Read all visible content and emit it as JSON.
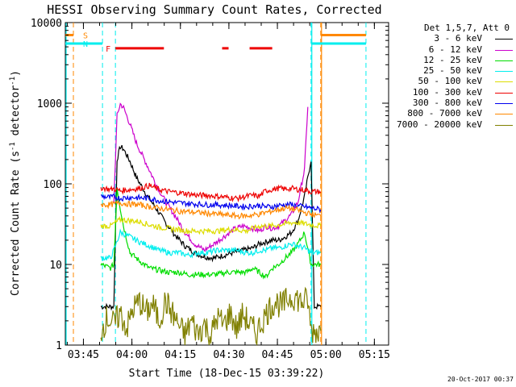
{
  "chart_data": {
    "type": "line",
    "title": "HESSI Observing Summary Count Rates, Corrected",
    "xlabel": "Start Time (18-Dec-15 03:39:22)",
    "ylabel": "Corrected Count Rate (s",
    "ylabel_sup": "-1",
    "ylabel_tail": " detector",
    "ylabel_end": ")",
    "x_ticks": [
      "03:45",
      "04:00",
      "04:15",
      "04:30",
      "04:45",
      "05:00",
      "05:15"
    ],
    "x_tick_minutes": [
      5.6,
      20.6,
      35.6,
      50.6,
      65.6,
      80.6,
      95.6
    ],
    "y_ticks": [
      "1",
      "10",
      "100",
      "1000",
      "10000"
    ],
    "y_tick_values": [
      1,
      10,
      100,
      1000,
      10000
    ],
    "xlim": [
      0,
      100
    ],
    "ylim": [
      1,
      10000
    ],
    "yscale": "log",
    "legend_title": "Det 1,5,7, Att 0",
    "legend_position": "right",
    "series": [
      {
        "name": "3 - 6 keV",
        "color": "#000000",
        "points": [
          [
            11,
            3
          ],
          [
            14,
            3
          ],
          [
            15,
            3
          ],
          [
            16,
            200
          ],
          [
            17,
            290
          ],
          [
            18,
            270
          ],
          [
            20,
            190
          ],
          [
            22,
            120
          ],
          [
            25,
            75
          ],
          [
            28,
            50
          ],
          [
            31,
            33
          ],
          [
            34,
            23
          ],
          [
            37,
            17
          ],
          [
            40,
            14
          ],
          [
            43,
            12.5
          ],
          [
            46,
            12
          ],
          [
            49,
            13
          ],
          [
            52,
            14
          ],
          [
            55,
            15
          ],
          [
            58,
            16
          ],
          [
            60,
            18
          ],
          [
            62,
            19
          ],
          [
            64,
            20
          ],
          [
            66,
            20
          ],
          [
            68,
            22
          ],
          [
            70,
            25
          ],
          [
            72,
            35
          ],
          [
            74,
            70
          ],
          [
            76,
            200
          ],
          [
            77,
            3
          ],
          [
            79,
            3
          ]
        ]
      },
      {
        "name": "6 - 12 keV",
        "color": "#cc00cc",
        "points": [
          [
            15,
            60
          ],
          [
            16,
            700
          ],
          [
            17,
            980
          ],
          [
            18,
            880
          ],
          [
            20,
            550
          ],
          [
            22,
            320
          ],
          [
            25,
            180
          ],
          [
            28,
            100
          ],
          [
            31,
            60
          ],
          [
            34,
            40
          ],
          [
            37,
            25
          ],
          [
            40,
            18
          ],
          [
            43,
            15
          ],
          [
            46,
            18
          ],
          [
            49,
            22
          ],
          [
            52,
            27
          ],
          [
            55,
            30
          ],
          [
            58,
            28
          ],
          [
            60,
            26
          ],
          [
            62,
            30
          ],
          [
            64,
            28
          ],
          [
            66,
            30
          ],
          [
            68,
            35
          ],
          [
            70,
            42
          ],
          [
            72,
            60
          ],
          [
            74,
            150
          ],
          [
            75,
            900
          ]
        ]
      },
      {
        "name": "12 - 25 keV",
        "color": "#00dd00",
        "points": [
          [
            11,
            10
          ],
          [
            14,
            9
          ],
          [
            15,
            10
          ],
          [
            16,
            90
          ],
          [
            17,
            50
          ],
          [
            18,
            30
          ],
          [
            20,
            14
          ],
          [
            23,
            11
          ],
          [
            26,
            9
          ],
          [
            29,
            8.5
          ],
          [
            32,
            8
          ],
          [
            35,
            8
          ],
          [
            38,
            7.5
          ],
          [
            41,
            7.5
          ],
          [
            44,
            7.5
          ],
          [
            47,
            7.5
          ],
          [
            50,
            8
          ],
          [
            53,
            8
          ],
          [
            56,
            8
          ],
          [
            58,
            9
          ],
          [
            60,
            8
          ],
          [
            62,
            7
          ],
          [
            64,
            9
          ],
          [
            66,
            10
          ],
          [
            68,
            12
          ],
          [
            70,
            14
          ],
          [
            72,
            18
          ],
          [
            74,
            25
          ],
          [
            76,
            10
          ],
          [
            79,
            10
          ]
        ]
      },
      {
        "name": "25 - 50 keV",
        "color": "#00eeee",
        "points": [
          [
            11,
            12
          ],
          [
            14,
            12
          ],
          [
            15,
            15
          ],
          [
            17,
            25
          ],
          [
            20,
            22
          ],
          [
            23,
            19
          ],
          [
            26,
            17
          ],
          [
            29,
            15
          ],
          [
            32,
            14
          ],
          [
            35,
            14
          ],
          [
            38,
            13
          ],
          [
            41,
            14
          ],
          [
            44,
            14
          ],
          [
            47,
            15
          ],
          [
            50,
            15
          ],
          [
            53,
            15
          ],
          [
            56,
            14
          ],
          [
            58,
            14
          ],
          [
            60,
            15
          ],
          [
            62,
            15
          ],
          [
            64,
            16
          ],
          [
            66,
            16
          ],
          [
            68,
            17
          ],
          [
            70,
            18
          ],
          [
            72,
            17
          ],
          [
            74,
            16
          ],
          [
            76,
            14
          ],
          [
            79,
            14
          ]
        ]
      },
      {
        "name": "50 - 100 keV",
        "color": "#dddd00",
        "points": [
          [
            11,
            30
          ],
          [
            14,
            30
          ],
          [
            15,
            32
          ],
          [
            17,
            36
          ],
          [
            20,
            35
          ],
          [
            23,
            34
          ],
          [
            26,
            31
          ],
          [
            29,
            29
          ],
          [
            32,
            28
          ],
          [
            35,
            27
          ],
          [
            38,
            26
          ],
          [
            41,
            26
          ],
          [
            44,
            26
          ],
          [
            47,
            26
          ],
          [
            50,
            27
          ],
          [
            53,
            27
          ],
          [
            56,
            26
          ],
          [
            58,
            28
          ],
          [
            60,
            30
          ],
          [
            62,
            30
          ],
          [
            64,
            30
          ],
          [
            66,
            31
          ],
          [
            68,
            32
          ],
          [
            70,
            33
          ],
          [
            72,
            33
          ],
          [
            74,
            32
          ],
          [
            76,
            31
          ],
          [
            79,
            30
          ]
        ]
      },
      {
        "name": "100 - 300 keV",
        "color": "#ee0000",
        "points": [
          [
            11,
            90
          ],
          [
            14,
            85
          ],
          [
            15,
            87
          ],
          [
            17,
            82
          ],
          [
            20,
            85
          ],
          [
            23,
            88
          ],
          [
            26,
            95
          ],
          [
            29,
            85
          ],
          [
            32,
            80
          ],
          [
            35,
            78
          ],
          [
            38,
            75
          ],
          [
            41,
            72
          ],
          [
            44,
            72
          ],
          [
            47,
            70
          ],
          [
            50,
            68
          ],
          [
            53,
            66
          ],
          [
            56,
            70
          ],
          [
            58,
            72
          ],
          [
            60,
            70
          ],
          [
            62,
            82
          ],
          [
            64,
            85
          ],
          [
            66,
            88
          ],
          [
            68,
            86
          ],
          [
            70,
            88
          ],
          [
            72,
            85
          ],
          [
            74,
            84
          ],
          [
            76,
            80
          ],
          [
            79,
            80
          ]
        ]
      },
      {
        "name": "300 - 800 keV",
        "color": "#0000ee",
        "points": [
          [
            11,
            70
          ],
          [
            14,
            68
          ],
          [
            15,
            69
          ],
          [
            17,
            66
          ],
          [
            20,
            68
          ],
          [
            23,
            67
          ],
          [
            26,
            66
          ],
          [
            29,
            62
          ],
          [
            32,
            60
          ],
          [
            35,
            58
          ],
          [
            38,
            57
          ],
          [
            41,
            56
          ],
          [
            44,
            55
          ],
          [
            47,
            55
          ],
          [
            50,
            54
          ],
          [
            53,
            53
          ],
          [
            56,
            52
          ],
          [
            58,
            53
          ],
          [
            60,
            54
          ],
          [
            62,
            52
          ],
          [
            64,
            52
          ],
          [
            66,
            54
          ],
          [
            68,
            55
          ],
          [
            70,
            55
          ],
          [
            72,
            53
          ],
          [
            74,
            52
          ],
          [
            76,
            50
          ],
          [
            79,
            48
          ]
        ]
      },
      {
        "name": "800 - 7000 keV",
        "color": "#ff8800",
        "points": [
          [
            11,
            55
          ],
          [
            14,
            55
          ],
          [
            15,
            56
          ],
          [
            17,
            58
          ],
          [
            20,
            56
          ],
          [
            23,
            55
          ],
          [
            26,
            52
          ],
          [
            29,
            50
          ],
          [
            32,
            48
          ],
          [
            35,
            46
          ],
          [
            38,
            45
          ],
          [
            41,
            44
          ],
          [
            44,
            43
          ],
          [
            47,
            42
          ],
          [
            50,
            41
          ],
          [
            53,
            40
          ],
          [
            56,
            40
          ],
          [
            58,
            41
          ],
          [
            60,
            42
          ],
          [
            62,
            44
          ],
          [
            64,
            46
          ],
          [
            66,
            48
          ],
          [
            68,
            50
          ],
          [
            70,
            49
          ],
          [
            72,
            47
          ],
          [
            74,
            44
          ],
          [
            76,
            42
          ],
          [
            79,
            40
          ]
        ]
      },
      {
        "name": "7000 - 20000 keV",
        "color": "#808000",
        "points": [
          [
            11,
            1.5
          ],
          [
            13,
            2.2
          ],
          [
            15,
            1.8
          ],
          [
            17,
            2.5
          ],
          [
            19,
            1.6
          ],
          [
            21,
            2.8
          ],
          [
            23,
            3.5
          ],
          [
            25,
            2.5
          ],
          [
            27,
            3.2
          ],
          [
            29,
            2
          ],
          [
            31,
            3.5
          ],
          [
            33,
            2.5
          ],
          [
            35,
            1.8
          ],
          [
            37,
            1.3
          ],
          [
            39,
            2
          ],
          [
            41,
            1.4
          ],
          [
            43,
            1.8
          ],
          [
            45,
            1.3
          ],
          [
            47,
            2.2
          ],
          [
            49,
            1.8
          ],
          [
            51,
            2.5
          ],
          [
            53,
            1.6
          ],
          [
            55,
            2.4
          ],
          [
            57,
            1.8
          ],
          [
            59,
            1.4
          ],
          [
            61,
            2
          ],
          [
            63,
            2.8
          ],
          [
            65,
            3.5
          ],
          [
            67,
            3
          ],
          [
            69,
            3.8
          ],
          [
            71,
            4
          ],
          [
            73,
            3.4
          ],
          [
            75,
            3.6
          ],
          [
            76,
            1.5
          ],
          [
            79,
            1.5
          ]
        ]
      }
    ],
    "annotations": {
      "flags": [
        {
          "label": "S",
          "color": "#ff8800",
          "y": 7000,
          "segments": [
            [
              0,
              2.5
            ],
            [
              79,
              93
            ]
          ]
        },
        {
          "label": "N",
          "color": "#00eeee",
          "y": 5500,
          "segments": [
            [
              0,
              11.5
            ],
            [
              76,
              93
            ]
          ]
        },
        {
          "label": "F",
          "color": "#ee0000",
          "y": 4800,
          "segments": [
            [
              15.5,
              30.5
            ],
            [
              48.5,
              50.5
            ],
            [
              57,
              64
            ]
          ]
        }
      ],
      "vlines": [
        {
          "x": 2.5,
          "color": "#ff8800"
        },
        {
          "x": 11.5,
          "color": "#00eeee"
        },
        {
          "x": 15.5,
          "color": "#00eeee"
        },
        {
          "x": 76,
          "color": "#00eeee"
        },
        {
          "x": 79,
          "color": "#ff8800"
        },
        {
          "x": 93,
          "color": "#00eeee"
        }
      ],
      "vlines_solid": [
        {
          "x": 0,
          "color": "#00eeee"
        },
        {
          "x": 76,
          "color": "#00eeee"
        },
        {
          "x": 79,
          "color": "#ff8800"
        }
      ]
    }
  },
  "timestamp": "20-Oct-2017 00:37"
}
